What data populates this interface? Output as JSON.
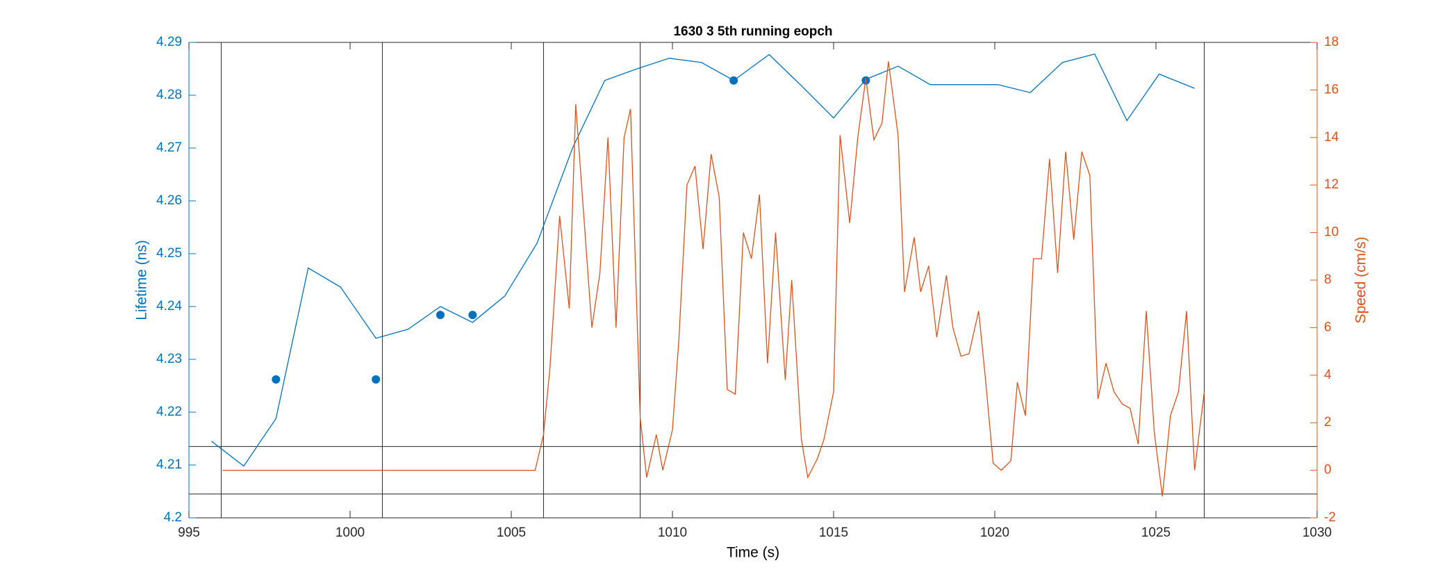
{
  "chart_data": {
    "type": "line",
    "title": "1630 3 5th running eopch",
    "xlabel": "Time (s)",
    "ylabel": "Lifetime (ns)",
    "y2label": "Speed (cm/s)",
    "xlim": [
      995,
      1030
    ],
    "xticks": [
      995,
      1000,
      1005,
      1010,
      1015,
      1020,
      1025,
      1030
    ],
    "ylim": [
      4.2,
      4.29
    ],
    "yticks": [
      4.2,
      4.21,
      4.22,
      4.23,
      4.24,
      4.25,
      4.26,
      4.27,
      4.28,
      4.29
    ],
    "y2lim": [
      -2,
      18
    ],
    "y2ticks": [
      -2,
      0,
      2,
      4,
      6,
      8,
      10,
      12,
      14,
      16,
      18
    ],
    "ycolor": "#0072bd",
    "y2color": "#d95319",
    "vlines": [
      996,
      1001,
      1006,
      1009,
      1026.5
    ],
    "hlines_y2": [
      1,
      -1
    ],
    "series": [
      {
        "mode": "line",
        "color": "#0072bd",
        "x": [
          995.7,
          996.7,
          997.7,
          998.7,
          999.7,
          1000.8,
          1001.8,
          1002.8,
          1003.8,
          1004.8,
          1005.8,
          1006.9,
          1007.9,
          1008.9,
          1009.9,
          1010.9,
          1011.9,
          1013.0,
          1014.0,
          1015.0,
          1016.0,
          1017.0,
          1018.0,
          1019.0,
          1020.1,
          1021.1,
          1022.1,
          1023.1,
          1024.1,
          1025.1,
          1026.2
        ],
        "values": [
          4.2145,
          4.2098,
          4.2188,
          4.2473,
          4.2437,
          4.234,
          4.2357,
          4.24,
          4.237,
          4.242,
          4.252,
          4.27,
          4.2828,
          4.285,
          4.287,
          4.2862,
          4.2828,
          4.2877,
          4.2818,
          4.2757,
          4.283,
          4.2855,
          4.282,
          4.282,
          4.282,
          4.2805,
          4.2862,
          4.2878,
          4.2752,
          4.284,
          4.2813
        ]
      },
      {
        "mode": "markers",
        "color": "#0072bd",
        "x": [
          997.7,
          1000.8,
          1002.8,
          1003.8,
          1011.9,
          1016.0
        ],
        "values": [
          4.2262,
          4.2262,
          4.2384,
          4.2384,
          4.2828,
          4.2828
        ]
      },
      {
        "mode": "line",
        "axis": "y2",
        "color": "#d95319",
        "x": [
          996.04,
          1005.74,
          1006.0,
          1006.2,
          1006.5,
          1006.8,
          1007.0,
          1007.5,
          1007.75,
          1008.0,
          1008.25,
          1008.5,
          1008.7,
          1009.0,
          1009.2,
          1009.5,
          1009.7,
          1010.0,
          1010.2,
          1010.45,
          1010.7,
          1010.95,
          1011.2,
          1011.45,
          1011.7,
          1011.95,
          1012.2,
          1012.45,
          1012.7,
          1012.95,
          1013.2,
          1013.5,
          1013.7,
          1014.0,
          1014.2,
          1014.5,
          1014.7,
          1015.0,
          1015.2,
          1015.5,
          1015.75,
          1016.0,
          1016.25,
          1016.5,
          1016.7,
          1017.0,
          1017.2,
          1017.5,
          1017.7,
          1017.95,
          1018.2,
          1018.5,
          1018.7,
          1018.95,
          1019.2,
          1019.5,
          1019.7,
          1019.95,
          1020.2,
          1020.5,
          1020.7,
          1020.95,
          1021.2,
          1021.45,
          1021.7,
          1021.95,
          1022.2,
          1022.45,
          1022.7,
          1022.95,
          1023.2,
          1023.45,
          1023.7,
          1023.95,
          1024.2,
          1024.45,
          1024.7,
          1024.95,
          1025.2,
          1025.45,
          1025.7,
          1025.95,
          1026.2,
          1026.5
        ],
        "values": [
          0,
          0,
          1.5,
          4.3,
          10.7,
          6.8,
          15.4,
          6.0,
          8.3,
          14.0,
          6.0,
          14.0,
          15.2,
          2.2,
          -0.3,
          1.5,
          0.0,
          1.7,
          5.5,
          12.0,
          12.8,
          9.3,
          13.3,
          11.5,
          3.4,
          3.2,
          10.0,
          8.9,
          11.6,
          4.5,
          10.0,
          3.8,
          8.0,
          1.3,
          -0.3,
          0.5,
          1.3,
          3.3,
          14.1,
          10.4,
          14.0,
          16.5,
          13.9,
          14.6,
          17.2,
          14.1,
          7.5,
          9.8,
          7.5,
          8.6,
          5.6,
          8.2,
          6.0,
          4.8,
          4.9,
          6.7,
          4.0,
          0.3,
          0.0,
          0.4,
          3.7,
          2.3,
          8.9,
          8.9,
          13.1,
          8.3,
          13.4,
          9.7,
          13.4,
          12.4,
          3.0,
          4.5,
          3.3,
          2.8,
          2.6,
          1.1,
          6.7,
          1.6,
          -1.1,
          2.3,
          3.3,
          6.7,
          0.0,
          3.3
        ]
      }
    ]
  }
}
